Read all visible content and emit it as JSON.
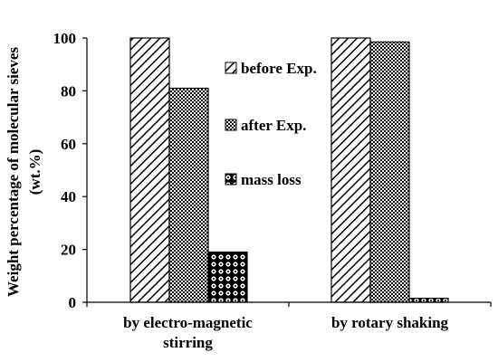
{
  "chart_data": {
    "type": "bar",
    "title": "",
    "xlabel": "",
    "ylabel_lines": [
      "Weight percentage of molecular sieves",
      "(wt.%)"
    ],
    "ylim": [
      0,
      100
    ],
    "yticks": [
      0,
      20,
      40,
      60,
      80,
      100
    ],
    "categories": [
      [
        "by electro-magnetic",
        "stirring"
      ],
      [
        "by rotary shaking"
      ]
    ],
    "series": [
      {
        "name": "before Exp.",
        "pattern": "diagonal-hatch",
        "values": [
          100,
          100
        ]
      },
      {
        "name": "after Exp.",
        "pattern": "checker",
        "values": [
          81,
          98.5
        ]
      },
      {
        "name": "mass loss",
        "pattern": "dotted-grid",
        "values": [
          19,
          1.5
        ]
      }
    ],
    "legend_position": "inside-center",
    "grid": false,
    "colors": {
      "ink": "#000000",
      "background": "#ffffff"
    }
  }
}
